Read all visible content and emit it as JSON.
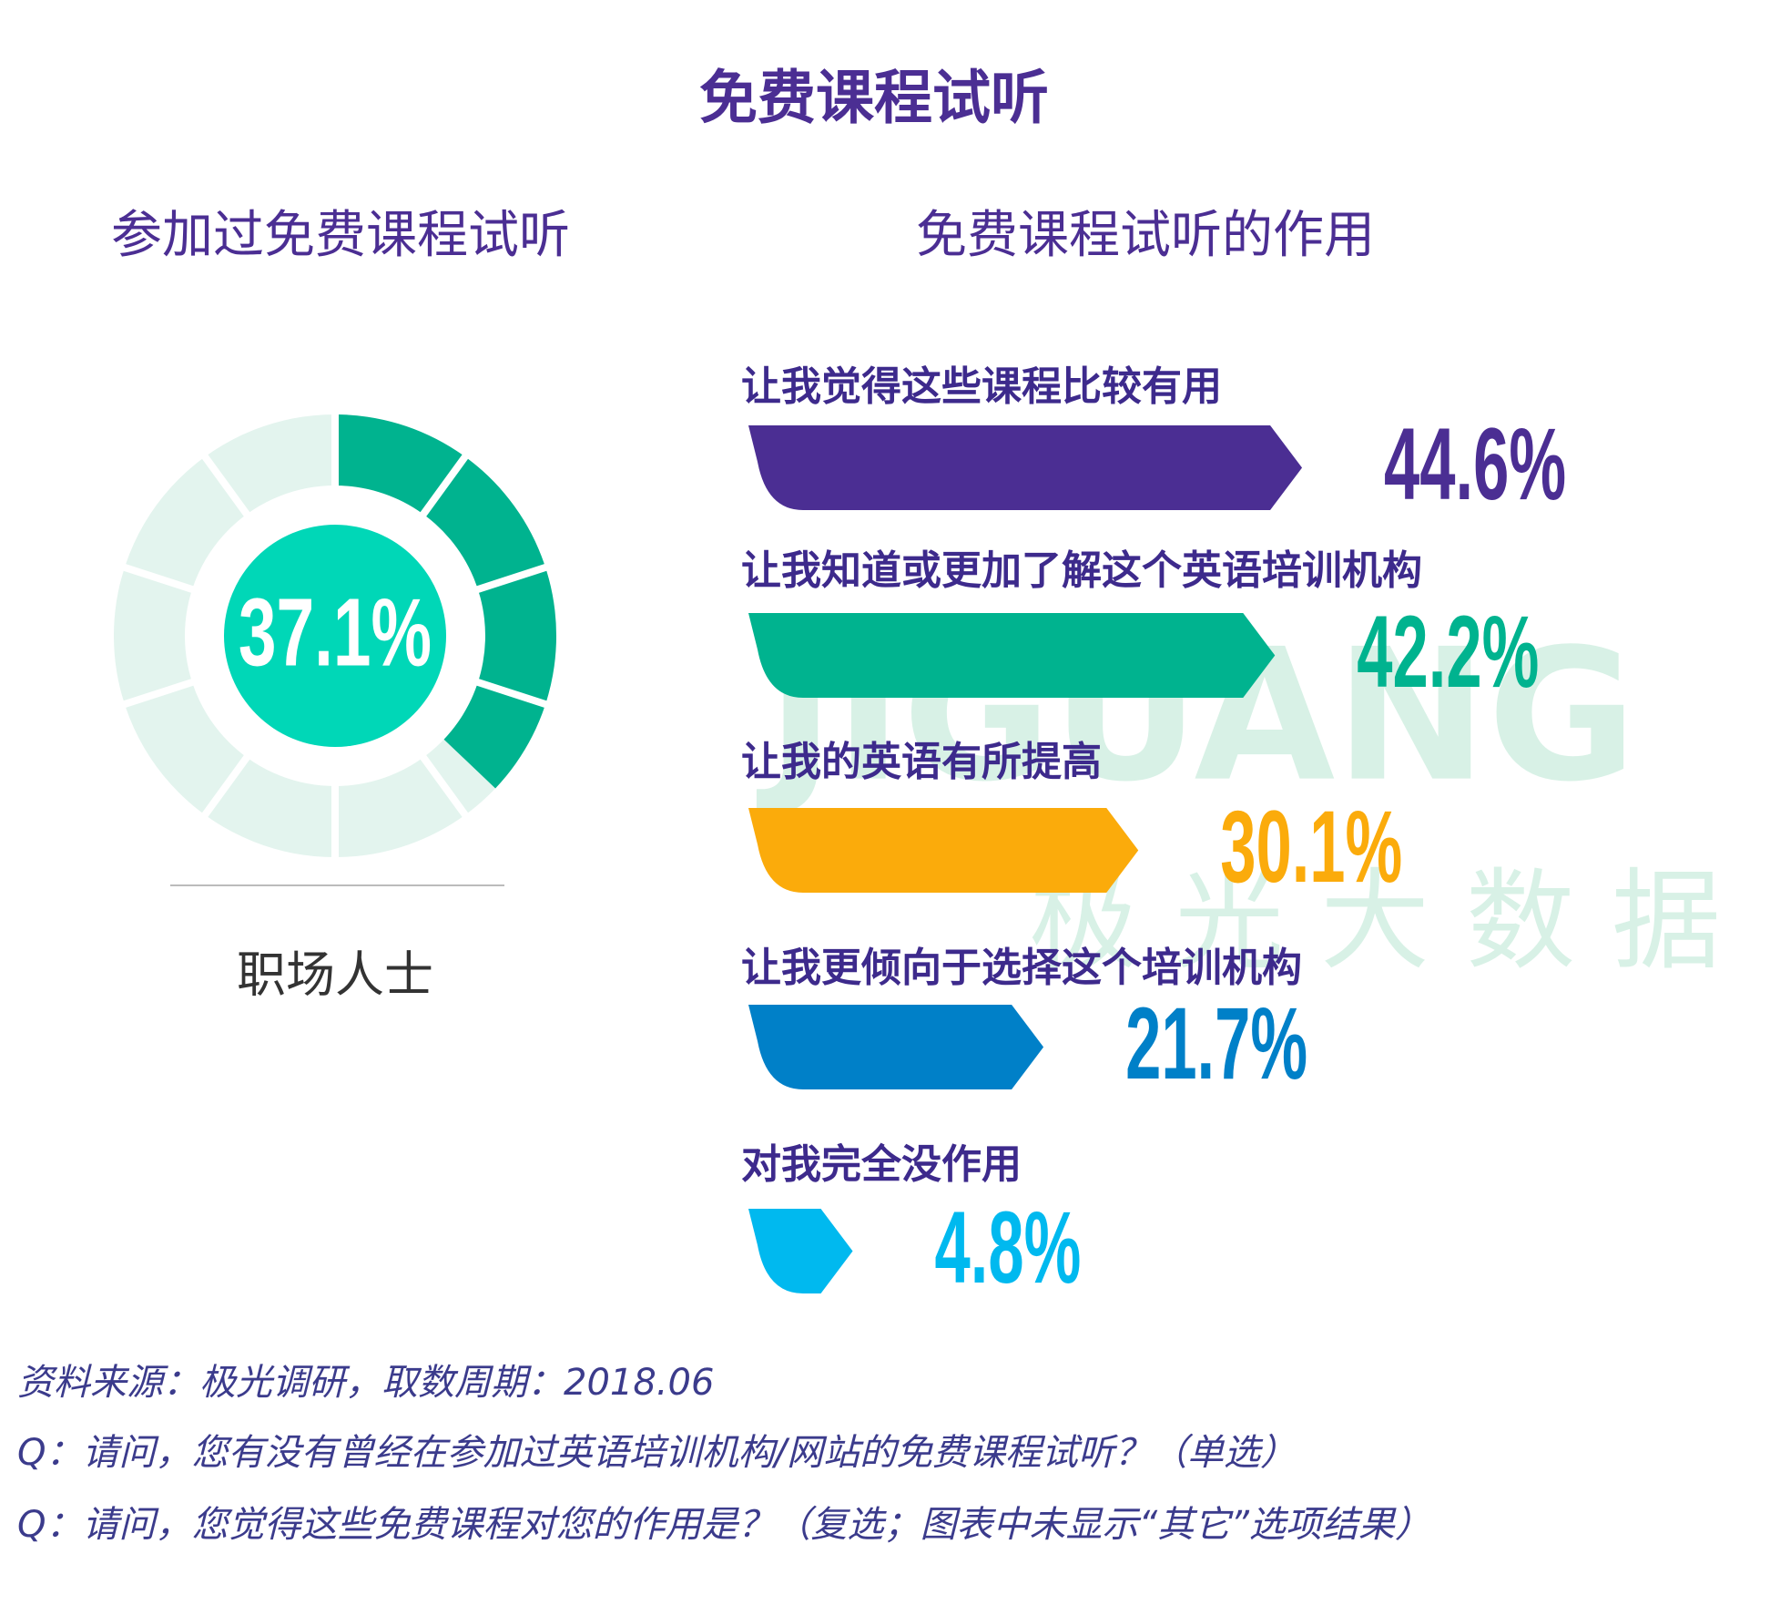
{
  "title": "免费课程试听",
  "watermark": [
    "JIGUANG",
    "极光大数据"
  ],
  "notes": [
    "资料来源：极光调研，取数周期：2018.06",
    "Q：请问，您有没有曾经在参加过英语培训机构/网站的免费课程试听？（单选）",
    "Q：请问，您觉得这些免费课程对您的作用是？（复选；图表中未显示“其它”选项结果）"
  ],
  "chart_data": [
    {
      "type": "donut",
      "title": "参加过免费课程试听",
      "categories": [
        "职场人士"
      ],
      "values": [
        37.1
      ],
      "value_labels": [
        "37.1%"
      ],
      "color": "#00b38f",
      "track_color": "#e3f4ee",
      "center_color": "#00d7b7"
    },
    {
      "type": "bar",
      "title": "免费课程试听的作用",
      "categories": [
        "让我觉得这些课程比较有用",
        "让我知道或更加了解这个英语培训机构",
        "让我的英语有所提高",
        "让我更倾向于选择这个培训机构",
        "对我完全没作用"
      ],
      "values": [
        44.6,
        42.2,
        30.1,
        21.7,
        4.8
      ],
      "value_labels": [
        "44.6%",
        "42.2%",
        "30.1%",
        "21.7%",
        "4.8%"
      ],
      "colors": [
        "#4b2e93",
        "#00b38f",
        "#fbab0b",
        "#0080c8",
        "#00b9ef"
      ]
    }
  ]
}
